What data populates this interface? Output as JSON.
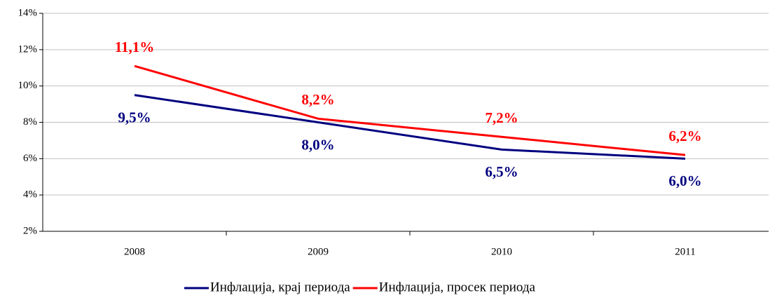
{
  "chart_data": {
    "type": "line",
    "categories": [
      "2008",
      "2009",
      "2010",
      "2011"
    ],
    "series": [
      {
        "name": "Инфлација, крај периода",
        "color": "#000080",
        "values": [
          9.5,
          8.0,
          6.5,
          6.0
        ],
        "value_labels": [
          "9,5%",
          "8,0%",
          "6,5%",
          "6,0%"
        ]
      },
      {
        "name": "Инфлација, просек периода",
        "color": "#ff0000",
        "values": [
          11.1,
          8.2,
          7.2,
          6.2
        ],
        "value_labels": [
          "11,1%",
          "8,2%",
          "7,2%",
          "6,2%"
        ]
      }
    ],
    "ylim": [
      2,
      14
    ],
    "yticks": [
      {
        "value": 2,
        "label": "2%"
      },
      {
        "value": 4,
        "label": "4%"
      },
      {
        "value": 6,
        "label": "6%"
      },
      {
        "value": 8,
        "label": "8%"
      },
      {
        "value": 10,
        "label": "10%"
      },
      {
        "value": 12,
        "label": "12%"
      },
      {
        "value": 14,
        "label": "14%"
      }
    ],
    "grid": true,
    "legend": "bottom"
  }
}
